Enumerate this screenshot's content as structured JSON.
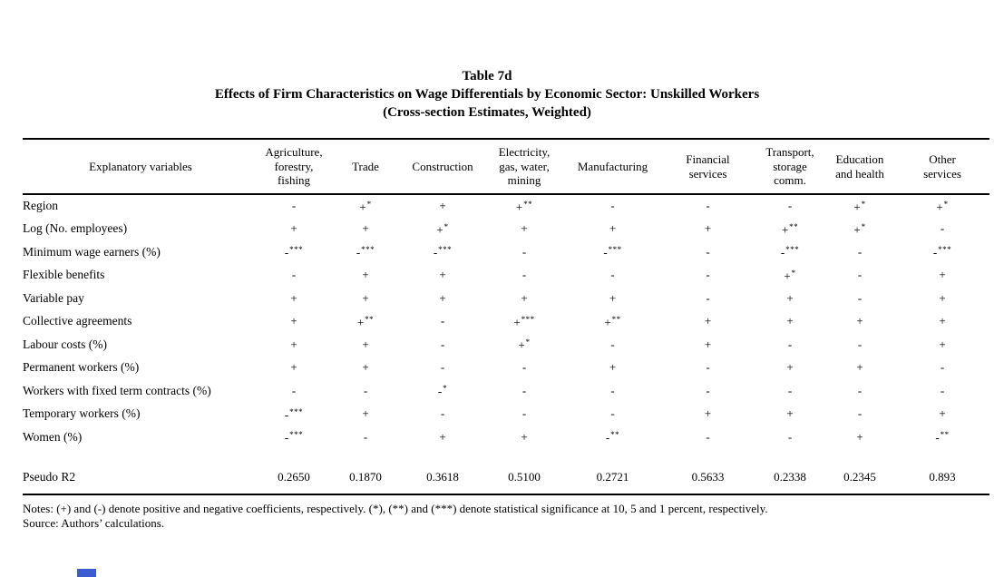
{
  "title": {
    "line1": "Table 7d",
    "line2": "Effects of Firm Characteristics on Wage Differentials by Economic Sector: Unskilled Workers",
    "line3": "(Cross-section Estimates, Weighted)"
  },
  "table": {
    "row_header": "Explanatory variables",
    "columns": [
      "Agriculture, forestry, fishing",
      "Trade",
      "Construction",
      "Electricity, gas, water, mining",
      "Manufacturing",
      "Financial services",
      "Transport, storage comm.",
      "Education and health",
      "Other services"
    ],
    "rows": [
      {
        "label": "Region",
        "cells": [
          [
            "-",
            ""
          ],
          [
            "+",
            "*"
          ],
          [
            "+",
            ""
          ],
          [
            "+",
            "**"
          ],
          [
            "-",
            ""
          ],
          [
            "-",
            ""
          ],
          [
            "-",
            ""
          ],
          [
            "+",
            "*"
          ],
          [
            "+",
            "*"
          ]
        ]
      },
      {
        "label": "Log (No. employees)",
        "cells": [
          [
            "+",
            ""
          ],
          [
            "+",
            ""
          ],
          [
            "+",
            "*"
          ],
          [
            "+",
            ""
          ],
          [
            "+",
            ""
          ],
          [
            "+",
            ""
          ],
          [
            "+",
            "**"
          ],
          [
            "+",
            "*"
          ],
          [
            "-",
            ""
          ]
        ]
      },
      {
        "label": "Minimum wage earners (%)",
        "cells": [
          [
            "-",
            "***"
          ],
          [
            "-",
            "***"
          ],
          [
            "-",
            "***"
          ],
          [
            "-",
            ""
          ],
          [
            "-",
            "***"
          ],
          [
            "-",
            ""
          ],
          [
            "-",
            "***"
          ],
          [
            "-",
            ""
          ],
          [
            "-",
            "***"
          ]
        ]
      },
      {
        "label": "Flexible benefits",
        "cells": [
          [
            "-",
            ""
          ],
          [
            "+",
            ""
          ],
          [
            "+",
            ""
          ],
          [
            "-",
            ""
          ],
          [
            "-",
            ""
          ],
          [
            "-",
            ""
          ],
          [
            "+",
            "*"
          ],
          [
            "-",
            ""
          ],
          [
            "+",
            ""
          ]
        ]
      },
      {
        "label": "Variable pay",
        "cells": [
          [
            "+",
            ""
          ],
          [
            "+",
            ""
          ],
          [
            "+",
            ""
          ],
          [
            "+",
            ""
          ],
          [
            "+",
            ""
          ],
          [
            "-",
            ""
          ],
          [
            "+",
            ""
          ],
          [
            "-",
            ""
          ],
          [
            "+",
            ""
          ]
        ]
      },
      {
        "label": "Collective agreements",
        "cells": [
          [
            "+",
            ""
          ],
          [
            "+",
            "**"
          ],
          [
            "-",
            ""
          ],
          [
            "+",
            "***"
          ],
          [
            "+",
            "**"
          ],
          [
            "+",
            ""
          ],
          [
            "+",
            ""
          ],
          [
            "+",
            ""
          ],
          [
            "+",
            ""
          ]
        ]
      },
      {
        "label": "Labour costs (%)",
        "cells": [
          [
            "+",
            ""
          ],
          [
            "+",
            ""
          ],
          [
            "-",
            ""
          ],
          [
            "+",
            "*"
          ],
          [
            "-",
            ""
          ],
          [
            "+",
            ""
          ],
          [
            "-",
            ""
          ],
          [
            "-",
            ""
          ],
          [
            "+",
            ""
          ]
        ]
      },
      {
        "label": "Permanent workers (%)",
        "cells": [
          [
            "+",
            ""
          ],
          [
            "+",
            ""
          ],
          [
            "-",
            ""
          ],
          [
            "-",
            ""
          ],
          [
            "+",
            ""
          ],
          [
            "-",
            ""
          ],
          [
            "+",
            ""
          ],
          [
            "+",
            ""
          ],
          [
            "-",
            ""
          ]
        ]
      },
      {
        "label": "Workers with fixed term contracts (%)",
        "cells": [
          [
            "-",
            ""
          ],
          [
            "-",
            ""
          ],
          [
            "-",
            "*"
          ],
          [
            "-",
            ""
          ],
          [
            "-",
            ""
          ],
          [
            "-",
            ""
          ],
          [
            "-",
            ""
          ],
          [
            "-",
            ""
          ],
          [
            "-",
            ""
          ]
        ]
      },
      {
        "label": "Temporary workers (%)",
        "cells": [
          [
            "-",
            "***"
          ],
          [
            "+",
            ""
          ],
          [
            "-",
            ""
          ],
          [
            "-",
            ""
          ],
          [
            "-",
            ""
          ],
          [
            "+",
            ""
          ],
          [
            "+",
            ""
          ],
          [
            "-",
            ""
          ],
          [
            "+",
            ""
          ]
        ]
      },
      {
        "label": "Women (%)",
        "cells": [
          [
            "-",
            "***"
          ],
          [
            "-",
            ""
          ],
          [
            "+",
            ""
          ],
          [
            "+",
            ""
          ],
          [
            "-",
            "**"
          ],
          [
            "-",
            ""
          ],
          [
            "-",
            ""
          ],
          [
            "+",
            ""
          ],
          [
            "-",
            "**"
          ]
        ]
      }
    ],
    "summary_row": {
      "label": "Pseudo R2",
      "values": [
        "0.2650",
        "0.1870",
        "0.3618",
        "0.5100",
        "0.2721",
        "0.5633",
        "0.2338",
        "0.2345",
        "0.893"
      ]
    }
  },
  "notes": {
    "line1": "Notes: (+) and (-) denote positive and negative coefficients, respectively. (*), (**) and (***) denote statistical significance at 10, 5 and 1 percent, respectively.",
    "line2": "Source: Authors’ calculations."
  },
  "decor": {
    "bottom_marker_color": "#3b5bd0"
  }
}
